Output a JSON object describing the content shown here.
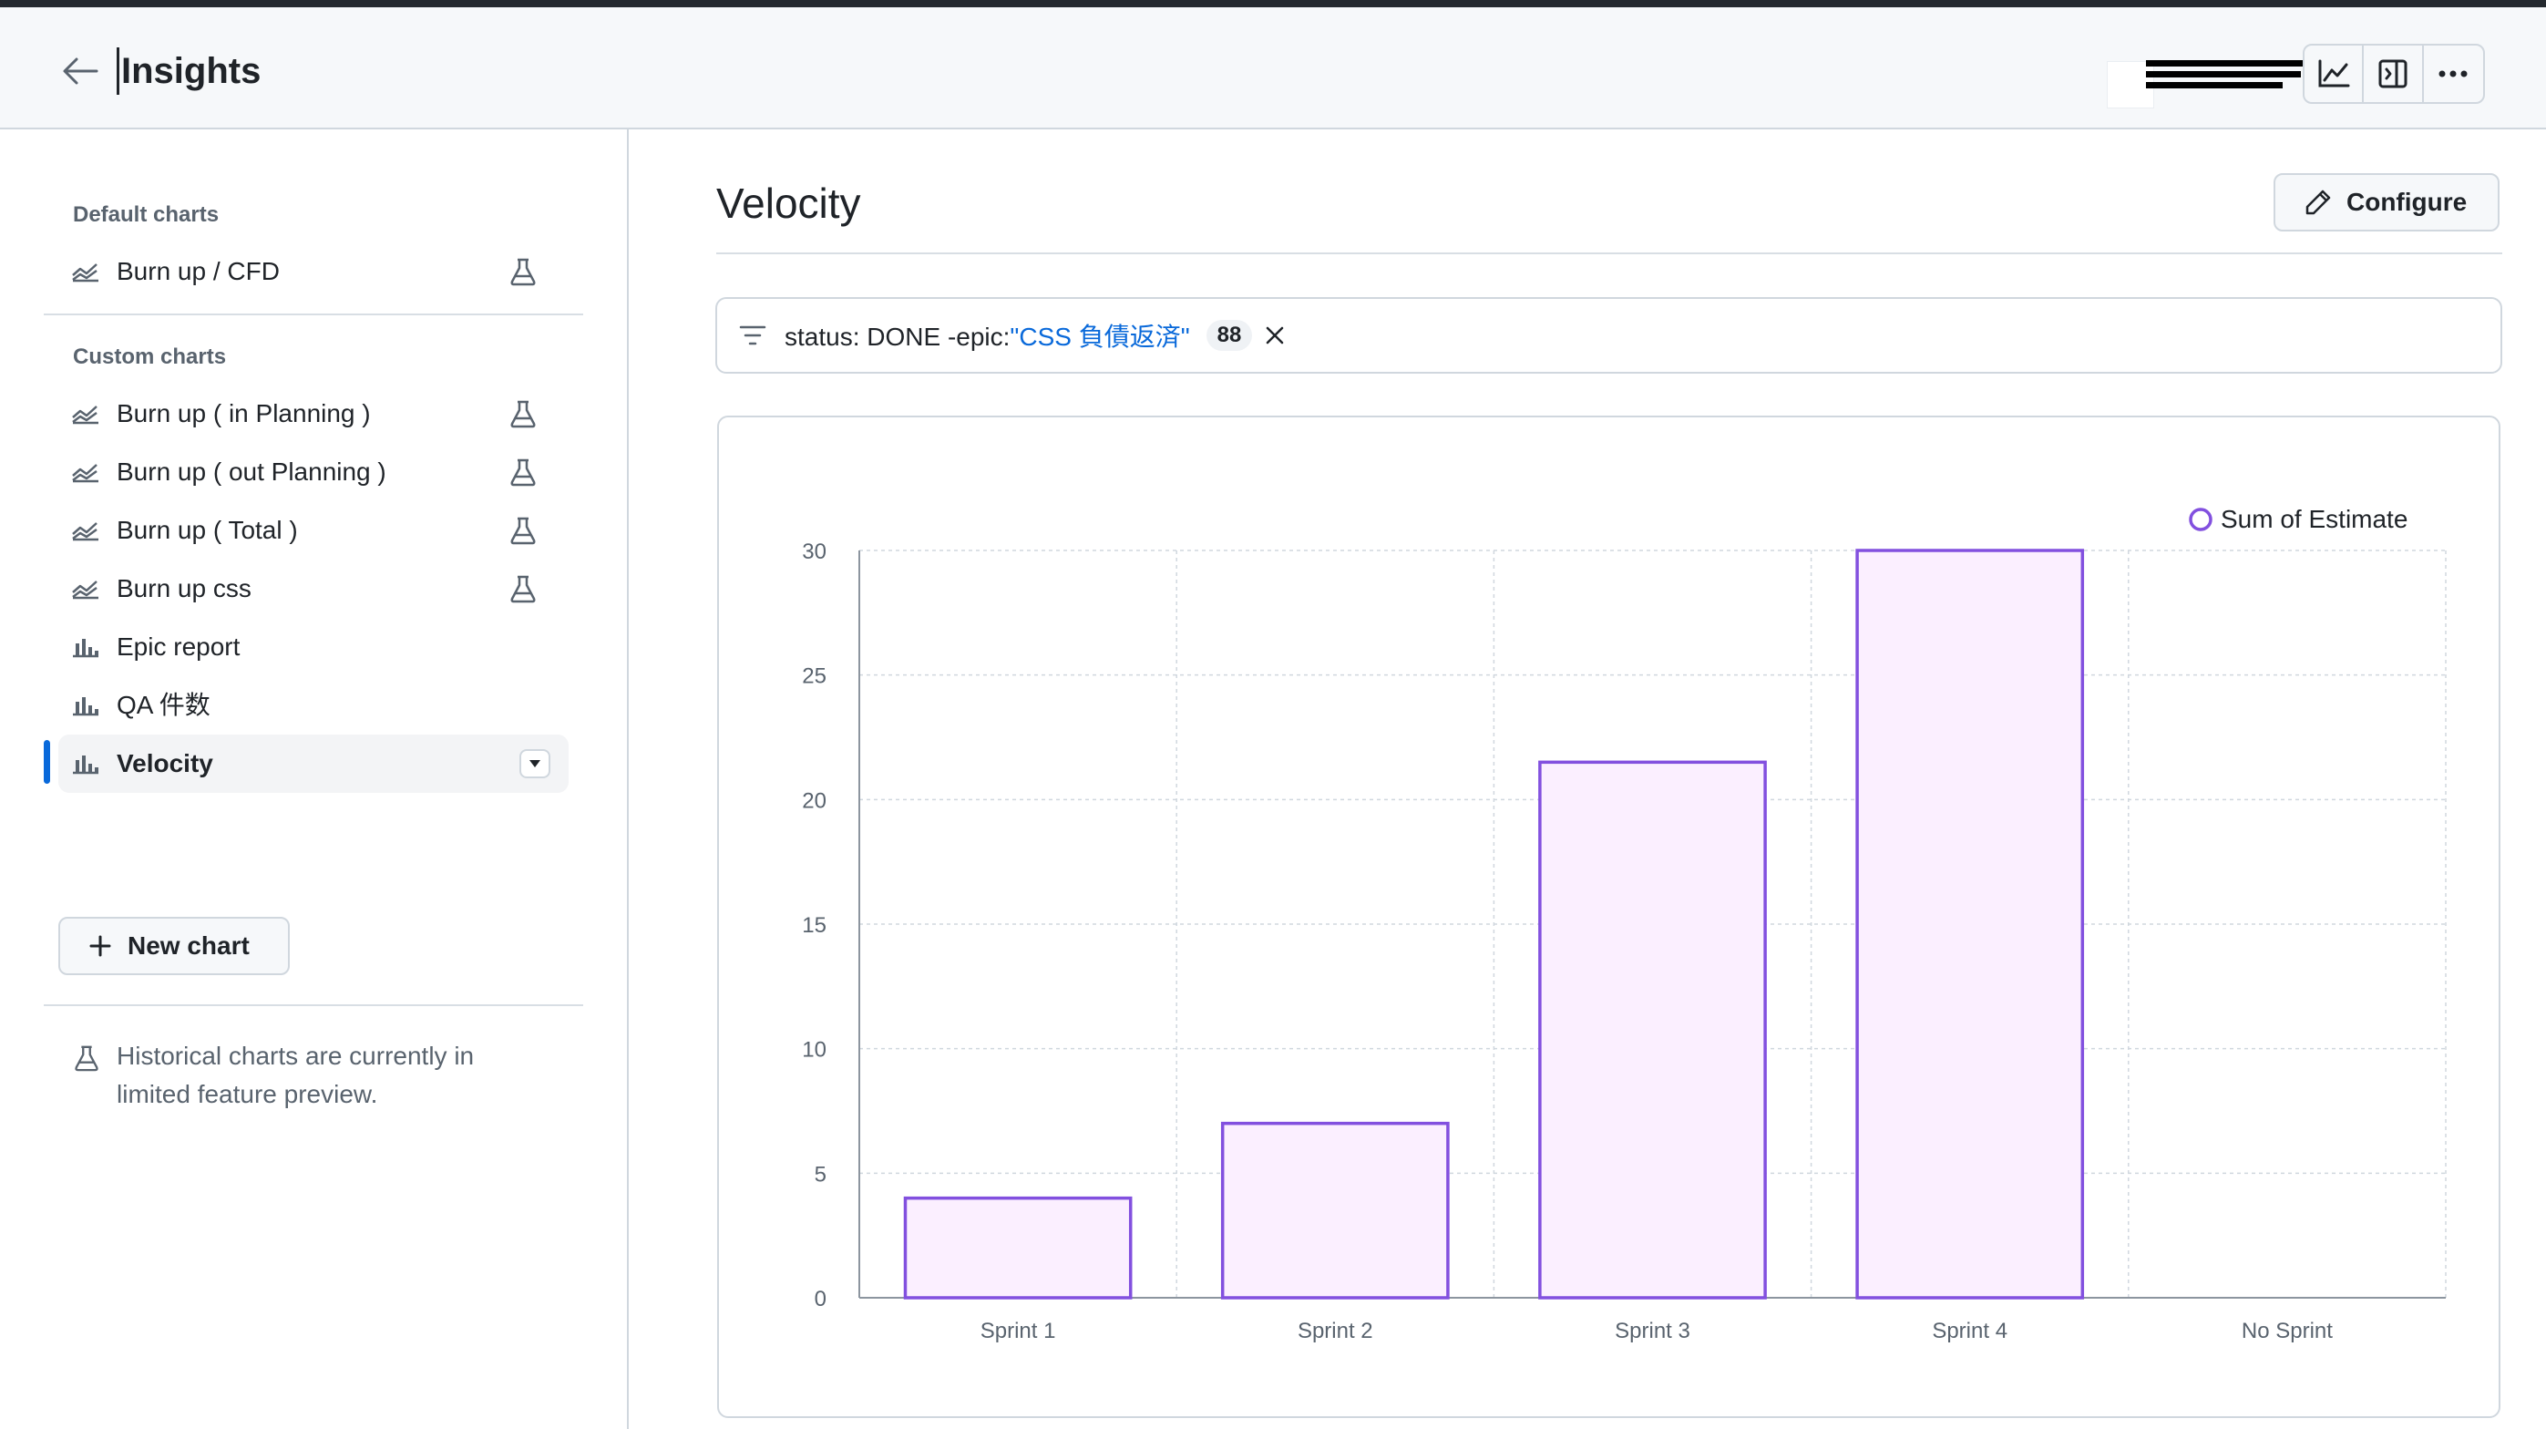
{
  "header": {
    "title": "Insights",
    "back_icon": "arrow-left-icon",
    "toolbar_icons": [
      "graph-icon",
      "sidebar-expand-icon",
      "kebab-horizontal-icon"
    ]
  },
  "sidebar": {
    "default_section": {
      "title": "Default charts",
      "items": [
        {
          "label": "Burn up / CFD",
          "icon": "graph-icon",
          "flask": true
        }
      ]
    },
    "custom_section": {
      "title": "Custom charts",
      "items": [
        {
          "label": "Burn up ( in Planning )",
          "icon": "graph-icon",
          "flask": true
        },
        {
          "label": "Burn up ( out Planning )",
          "icon": "graph-icon",
          "flask": true
        },
        {
          "label": "Burn up ( Total )",
          "icon": "graph-icon",
          "flask": true
        },
        {
          "label": "Burn up css",
          "icon": "graph-icon",
          "flask": true
        },
        {
          "label": "Epic report",
          "icon": "bar-chart-icon",
          "flask": false
        },
        {
          "label": "QA 件数",
          "icon": "bar-chart-icon",
          "flask": false
        },
        {
          "label": "Velocity",
          "icon": "bar-chart-icon",
          "flask": false,
          "selected": true
        }
      ]
    },
    "new_chart_label": "New chart",
    "preview_note": "Historical charts are currently in limited feature preview."
  },
  "main": {
    "title": "Velocity",
    "configure_label": "Configure",
    "filter": {
      "prefix": "status: DONE -epic:",
      "value": "\"CSS 負債返済\"",
      "count": "88"
    }
  },
  "colors": {
    "accent": "#0969da",
    "bar_stroke": "#8250df",
    "bar_fill": "#fbefff"
  },
  "chart_data": {
    "type": "bar",
    "categories": [
      "Sprint 1",
      "Sprint 2",
      "Sprint 3",
      "Sprint 4",
      "No Sprint"
    ],
    "series": [
      {
        "name": "Sum of Estimate",
        "values": [
          4,
          7,
          21.5,
          30,
          0
        ]
      }
    ],
    "ylim": [
      0,
      30
    ],
    "yticks": [
      0,
      5,
      10,
      15,
      20,
      25,
      30
    ],
    "grid": true,
    "legend_position": "top-right"
  }
}
